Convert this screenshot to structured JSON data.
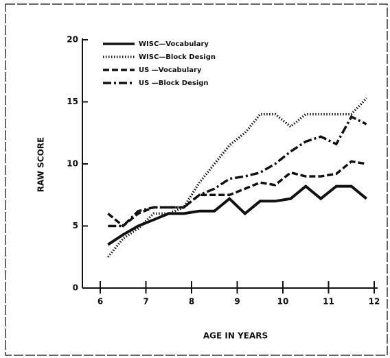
{
  "chart_data": {
    "type": "line",
    "xlabel": "AGE IN YEARS",
    "ylabel": "RAW SCORE",
    "x": [
      6.17,
      6.5,
      6.83,
      7.17,
      7.5,
      7.83,
      8.17,
      8.5,
      8.83,
      9.17,
      9.5,
      9.83,
      10.17,
      10.5,
      10.83,
      11.17,
      11.5,
      11.83
    ],
    "series": [
      {
        "name": "WISC—Vocabulary",
        "color": "#111111",
        "style": "solid",
        "values": [
          3.5,
          4.3,
          5,
          5.5,
          6,
          6,
          6.2,
          6.2,
          7.2,
          6,
          7,
          7,
          7.2,
          8.2,
          7.2,
          8.2,
          8.2,
          7.2
        ]
      },
      {
        "name": "WISC—Block Design",
        "color": "#111111",
        "style": "dotted",
        "values": [
          2.5,
          4,
          4.8,
          6,
          6,
          6.5,
          8.5,
          10,
          11.5,
          12.5,
          14,
          14,
          13,
          14,
          14,
          14,
          14,
          15.3
        ]
      },
      {
        "name": "US —Vocabulary",
        "color": "#111111",
        "style": "dashed",
        "values": [
          6,
          5,
          6,
          6.5,
          6.5,
          6.5,
          7.5,
          7.5,
          7.5,
          8,
          8.5,
          8.3,
          9.3,
          9,
          9,
          9.2,
          10.2,
          10
        ]
      },
      {
        "name": "US —Block Design",
        "color": "#111111",
        "style": "dashdot",
        "values": [
          5,
          5,
          6.2,
          6.5,
          6.5,
          6.5,
          7.5,
          8,
          8.8,
          9,
          9.3,
          10,
          11,
          11.8,
          12.2,
          11.6,
          13.8,
          13.2
        ]
      }
    ],
    "xlim": [
      6,
      12
    ],
    "xticks": [
      6,
      7,
      8,
      9,
      10,
      11,
      12
    ],
    "ylim": [
      0,
      20
    ],
    "yticks": [
      0,
      5,
      10,
      15,
      20
    ]
  }
}
